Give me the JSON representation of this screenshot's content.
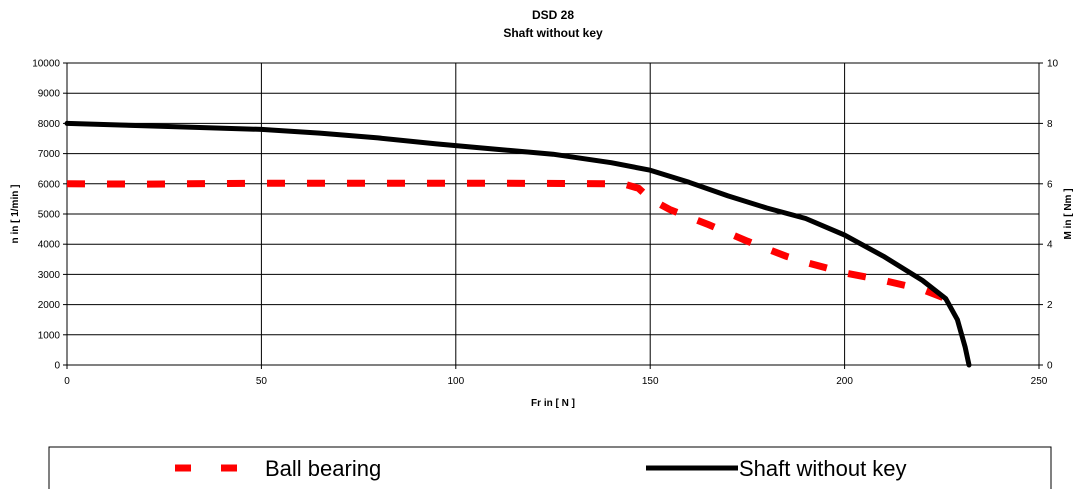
{
  "chart_data": {
    "type": "line",
    "title": "DSD 28",
    "subtitle": "Shaft without key",
    "xlabel": "Fr in [ N ]",
    "ylabel": "n in [ 1/min ]",
    "y2label": "M in [ Nm ]",
    "xlim": [
      0,
      250
    ],
    "ylim": [
      0,
      10000
    ],
    "y2lim": [
      0,
      10
    ],
    "x_ticks": [
      0,
      50,
      100,
      150,
      200,
      250
    ],
    "y_ticks": [
      0,
      1000,
      2000,
      3000,
      4000,
      5000,
      6000,
      7000,
      8000,
      9000,
      10000
    ],
    "y2_ticks": [
      0,
      2,
      4,
      6,
      8,
      10
    ],
    "grid": true,
    "legend_position": "bottom",
    "series": [
      {
        "name": "Ball bearing",
        "color": "#ff0000",
        "style": "dashed",
        "x": [
          0,
          20,
          50,
          80,
          110,
          130,
          143,
          147,
          150,
          155,
          165,
          175,
          185,
          190,
          200,
          210,
          220,
          226
        ],
        "y": [
          6000,
          5990,
          6020,
          6020,
          6020,
          6010,
          6000,
          5850,
          5500,
          5150,
          4650,
          4100,
          3600,
          3400,
          3050,
          2800,
          2500,
          2200
        ]
      },
      {
        "name": "Shaft without key",
        "color": "#000000",
        "style": "solid",
        "x": [
          0,
          25,
          50,
          65,
          80,
          95,
          110,
          125,
          140,
          150,
          160,
          170,
          180,
          190,
          200,
          210,
          220,
          226,
          229,
          231,
          232
        ],
        "y": [
          8000,
          7900,
          7800,
          7680,
          7520,
          7320,
          7150,
          6980,
          6700,
          6450,
          6050,
          5600,
          5200,
          4850,
          4300,
          3600,
          2800,
          2200,
          1500,
          600,
          0
        ]
      }
    ]
  }
}
